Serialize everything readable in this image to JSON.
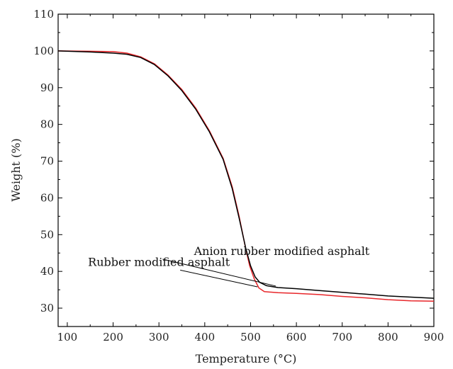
{
  "chart_data": {
    "type": "line",
    "title": "",
    "xlabel": "Temperature (°C)",
    "ylabel": "Weight (%)",
    "xlim": [
      80,
      900
    ],
    "ylim": [
      25,
      110
    ],
    "x_ticks": [
      100,
      200,
      300,
      400,
      500,
      600,
      700,
      800,
      900
    ],
    "y_ticks": [
      30,
      40,
      50,
      60,
      70,
      80,
      90,
      100,
      110
    ],
    "grid": false,
    "legend": "none",
    "series": [
      {
        "name": "Anion rubber modified asphalt",
        "color": "#000000",
        "points": [
          [
            80,
            100
          ],
          [
            150,
            99.7
          ],
          [
            200,
            99.4
          ],
          [
            230,
            99.1
          ],
          [
            260,
            98.2
          ],
          [
            290,
            96.3
          ],
          [
            320,
            93.2
          ],
          [
            350,
            89.2
          ],
          [
            380,
            84.2
          ],
          [
            410,
            78
          ],
          [
            440,
            70.5
          ],
          [
            460,
            62.5
          ],
          [
            475,
            54.5
          ],
          [
            490,
            46
          ],
          [
            500,
            41.5
          ],
          [
            510,
            38.5
          ],
          [
            520,
            37
          ],
          [
            535,
            36.1
          ],
          [
            560,
            35.6
          ],
          [
            600,
            35.3
          ],
          [
            650,
            34.8
          ],
          [
            700,
            34.3
          ],
          [
            750,
            33.8
          ],
          [
            800,
            33.3
          ],
          [
            850,
            33
          ],
          [
            900,
            32.7
          ]
        ]
      },
      {
        "name": "Rubber modified asphalt",
        "color": "#e8262a",
        "points": [
          [
            80,
            100
          ],
          [
            150,
            99.9
          ],
          [
            200,
            99.8
          ],
          [
            230,
            99.4
          ],
          [
            260,
            98.4
          ],
          [
            290,
            96.5
          ],
          [
            320,
            93.4
          ],
          [
            350,
            89.5
          ],
          [
            380,
            84.5
          ],
          [
            410,
            78.3
          ],
          [
            440,
            70.8
          ],
          [
            460,
            63
          ],
          [
            475,
            55
          ],
          [
            488,
            47
          ],
          [
            498,
            41.5
          ],
          [
            508,
            38
          ],
          [
            518,
            35.5
          ],
          [
            530,
            34.5
          ],
          [
            560,
            34.2
          ],
          [
            600,
            34
          ],
          [
            650,
            33.7
          ],
          [
            700,
            33.2
          ],
          [
            750,
            32.8
          ],
          [
            800,
            32.3
          ],
          [
            850,
            32
          ],
          [
            900,
            31.9
          ]
        ]
      }
    ],
    "annotations": [
      {
        "text": "Anion rubber modified asphalt",
        "x": 568,
        "y": 44.5,
        "arrow_to": [
          555,
          36
        ],
        "anchor": "middle"
      },
      {
        "text": "Rubber modified asphalt",
        "x": 300,
        "y": 41.5,
        "arrow_to": [
          515,
          35.8
        ],
        "anchor": "middle"
      }
    ]
  }
}
